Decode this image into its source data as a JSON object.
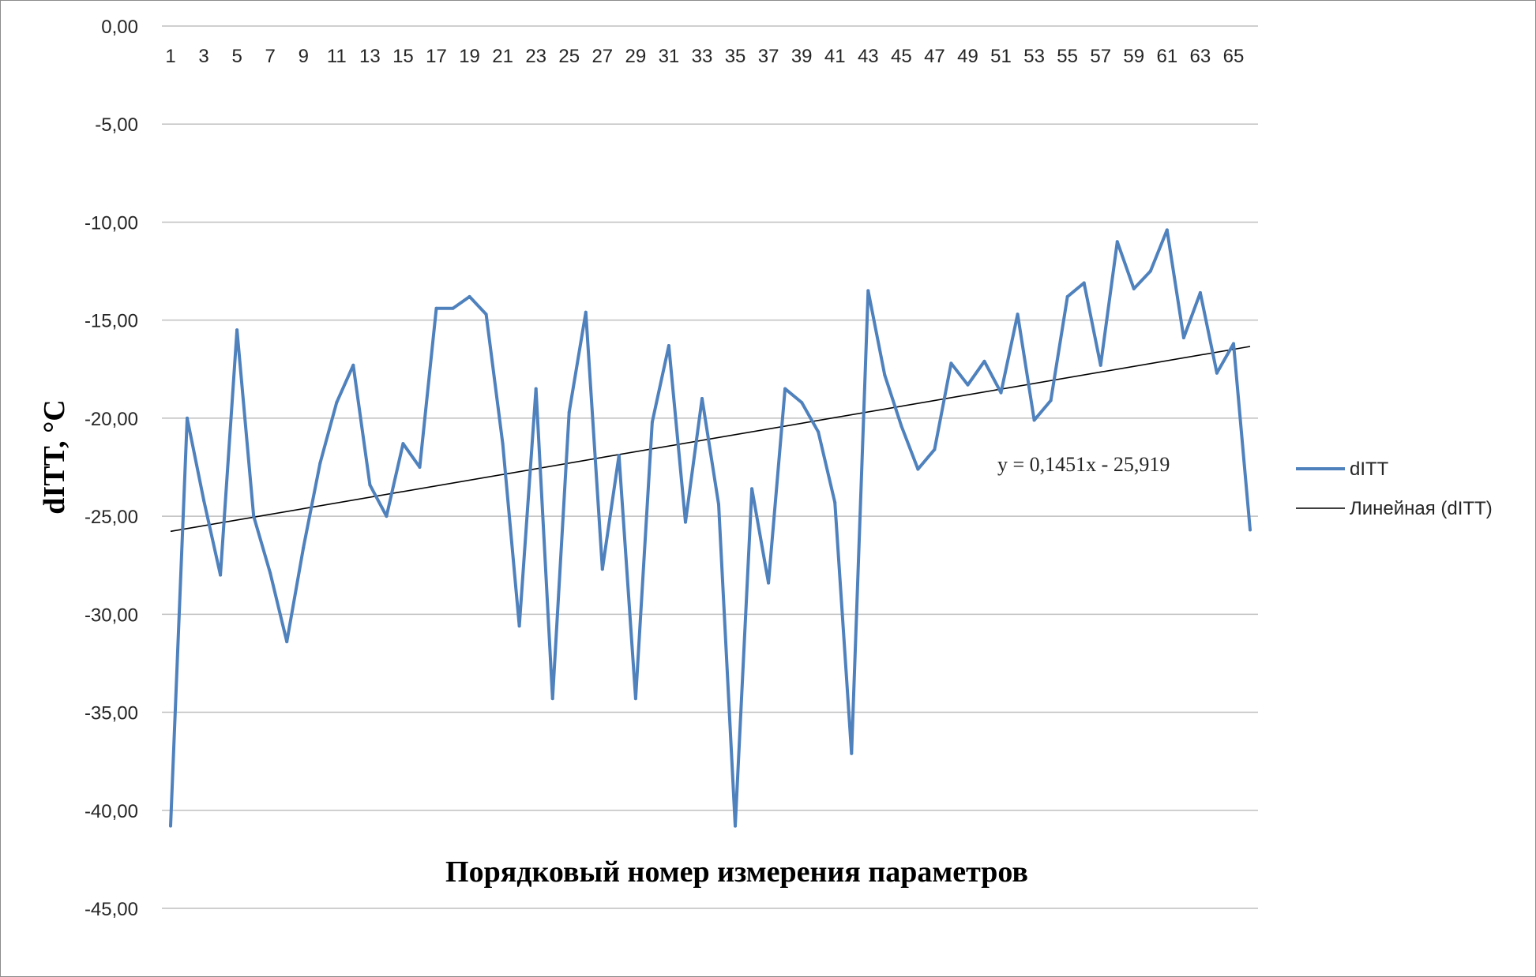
{
  "chart_data": {
    "type": "line",
    "xlabel": "Порядковый номер измерения параметров",
    "ylabel": "dITT, °C",
    "ylim": [
      -45,
      0
    ],
    "y_ticks": [
      0,
      -5,
      -10,
      -15,
      -20,
      -25,
      -30,
      -35,
      -40,
      -45
    ],
    "y_tick_labels": [
      "0,00",
      "-5,00",
      "-10,00",
      "-15,00",
      "-20,00",
      "-25,00",
      "-30,00",
      "-35,00",
      "-40,00",
      "-45,00"
    ],
    "x_tick_labels": [
      "1",
      "3",
      "5",
      "7",
      "9",
      "11",
      "13",
      "15",
      "17",
      "19",
      "21",
      "23",
      "25",
      "27",
      "29",
      "31",
      "33",
      "35",
      "37",
      "39",
      "41",
      "43",
      "45",
      "47",
      "49",
      "51",
      "53",
      "55",
      "57",
      "59",
      "61",
      "63",
      "65"
    ],
    "x_range": [
      1,
      66
    ],
    "x_axis_position": "top",
    "grid": true,
    "legend_position": "right",
    "series": [
      {
        "name": "dITT",
        "color": "#4f81bd",
        "x": [
          1,
          2,
          3,
          4,
          5,
          6,
          7,
          8,
          9,
          10,
          11,
          12,
          13,
          14,
          15,
          16,
          17,
          18,
          19,
          20,
          21,
          22,
          23,
          24,
          25,
          26,
          27,
          28,
          29,
          30,
          31,
          32,
          33,
          34,
          35,
          36,
          37,
          38,
          39,
          40,
          41,
          42,
          43,
          44,
          45,
          46,
          47,
          48,
          49,
          50,
          51,
          52,
          53,
          54,
          55,
          56,
          57,
          58,
          59,
          60,
          61,
          62,
          63,
          64,
          65,
          66
        ],
        "values": [
          -40.8,
          -20.0,
          -24.2,
          -28.0,
          -15.5,
          -25.0,
          -27.9,
          -31.4,
          -26.6,
          -22.3,
          -19.2,
          -17.3,
          -23.4,
          -25.0,
          -21.3,
          -22.5,
          -14.4,
          -14.4,
          -13.8,
          -14.7,
          -21.3,
          -30.6,
          -18.5,
          -34.3,
          -19.7,
          -14.6,
          -27.7,
          -21.9,
          -34.3,
          -20.2,
          -16.3,
          -25.3,
          -19.0,
          -24.4,
          -40.8,
          -23.6,
          -28.4,
          -18.5,
          -19.2,
          -20.7,
          -24.3,
          -37.1,
          -13.5,
          -17.8,
          -20.4,
          -22.6,
          -21.6,
          -17.2,
          -18.3,
          -17.1,
          -18.7,
          -14.7,
          -20.1,
          -19.1,
          -13.8,
          -13.1,
          -17.3,
          -11.0,
          -13.4,
          -12.5,
          -10.4,
          -15.9,
          -13.6,
          -17.7,
          -16.2,
          -25.7
        ]
      }
    ],
    "trendline": {
      "name": "Линейная (dITT)",
      "slope": 0.1451,
      "intercept": -25.919,
      "color": "#000000",
      "equation": "y = 0,1451x - 25,919"
    }
  }
}
